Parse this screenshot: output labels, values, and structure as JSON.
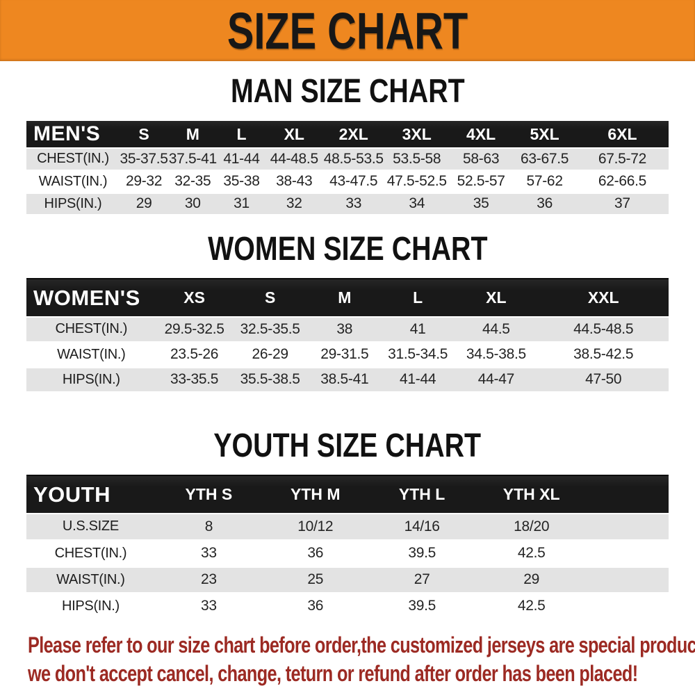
{
  "banner": {
    "title": "SIZE CHART"
  },
  "colors": {
    "banner_bg": "#ee8720",
    "header_bg": "#191919",
    "header_bg_hi": "#262626",
    "row_stripe": "#e3e3e3",
    "disclaimer_color": "#9c2a23"
  },
  "chart_data": [
    {
      "type": "table",
      "title": "MAN SIZE CHART",
      "header_label": "MEN'S",
      "columns": [
        "S",
        "M",
        "L",
        "XL",
        "2XL",
        "3XL",
        "4XL",
        "5XL",
        "6XL"
      ],
      "rows": [
        {
          "label": "CHEST(IN.)",
          "values": [
            "35-37.5",
            "37.5-41",
            "41-44",
            "44-48.5",
            "48.5-53.5",
            "53.5-58",
            "58-63",
            "63-67.5",
            "67.5-72"
          ]
        },
        {
          "label": "WAIST(IN.)",
          "values": [
            "29-32",
            "32-35",
            "35-38",
            "38-43",
            "43-47.5",
            "47.5-52.5",
            "52.5-57",
            "57-62",
            "62-66.5"
          ]
        },
        {
          "label": "HIPS(IN.)",
          "values": [
            "29",
            "30",
            "31",
            "32",
            "33",
            "34",
            "35",
            "36",
            "37"
          ]
        }
      ]
    },
    {
      "type": "table",
      "title": "WOMEN SIZE CHART",
      "header_label": "WOMEN'S",
      "columns": [
        "XS",
        "S",
        "M",
        "L",
        "XL",
        "XXL"
      ],
      "rows": [
        {
          "label": "CHEST(IN.)",
          "values": [
            "29.5-32.5",
            "32.5-35.5",
            "38",
            "41",
            "44.5",
            "44.5-48.5"
          ]
        },
        {
          "label": "WAIST(IN.)",
          "values": [
            "23.5-26",
            "26-29",
            "29-31.5",
            "31.5-34.5",
            "34.5-38.5",
            "38.5-42.5"
          ]
        },
        {
          "label": "HIPS(IN.)",
          "values": [
            "33-35.5",
            "35.5-38.5",
            "38.5-41",
            "41-44",
            "44-47",
            "47-50"
          ]
        }
      ]
    },
    {
      "type": "table",
      "title": "YOUTH SIZE CHART",
      "header_label": "YOUTH",
      "columns": [
        "YTH S",
        "YTH M",
        "YTH L",
        "YTH XL"
      ],
      "rows": [
        {
          "label": "U.S.SIZE",
          "values": [
            "8",
            "10/12",
            "14/16",
            "18/20"
          ]
        },
        {
          "label": "CHEST(IN.)",
          "values": [
            "33",
            "36",
            "39.5",
            "42.5"
          ]
        },
        {
          "label": "WAIST(IN.)",
          "values": [
            "23",
            "25",
            "27",
            "29"
          ]
        },
        {
          "label": "HIPS(IN.)",
          "values": [
            "33",
            "36",
            "39.5",
            "42.5"
          ]
        }
      ]
    }
  ],
  "disclaimer": {
    "line1": "Please refer to our size chart before order,the customized jerseys are special products,",
    "line2": "we don't accept cancel, change, teturn or refund after order has been placed!"
  }
}
